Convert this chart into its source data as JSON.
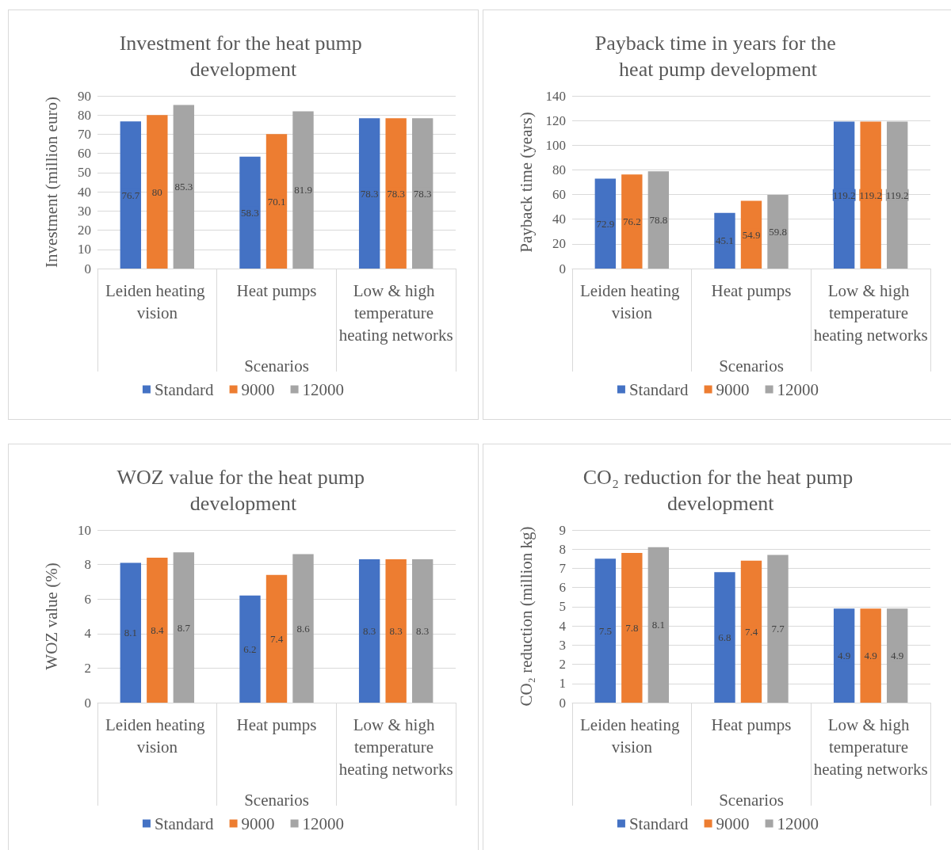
{
  "chart_data": [
    {
      "type": "bar",
      "title": "Investment for the heat pump development",
      "xlabel": "Scenarios",
      "ylabel": "Investment (million euro)",
      "categories": [
        "Leiden heating vision",
        "Heat pumps",
        "Low & high temperature heating networks"
      ],
      "series": [
        {
          "name": "Standard",
          "color": "#4472c4",
          "values": [
            76.7,
            58.3,
            78.3
          ]
        },
        {
          "name": "9000",
          "color": "#ed7d31",
          "values": [
            80,
            70.1,
            78.3
          ]
        },
        {
          "name": "12000",
          "color": "#a5a5a5",
          "values": [
            85.3,
            81.9,
            78.3
          ]
        }
      ],
      "ylim": [
        0,
        90
      ],
      "yticks": [
        0,
        10,
        20,
        30,
        40,
        50,
        60,
        70,
        80,
        90
      ],
      "grid": "y",
      "legend": "bottom",
      "data_labels": true
    },
    {
      "type": "bar",
      "title": "Payback time in years for the heat pump development",
      "xlabel": "Scenarios",
      "ylabel": "Payback time (years)",
      "categories": [
        "Leiden heating vision",
        "Heat pumps",
        "Low & high temperature heating networks"
      ],
      "series": [
        {
          "name": "Standard",
          "color": "#4472c4",
          "values": [
            72.9,
            45.1,
            119.2
          ]
        },
        {
          "name": "9000",
          "color": "#ed7d31",
          "values": [
            76.2,
            54.9,
            119.2
          ]
        },
        {
          "name": "12000",
          "color": "#a5a5a5",
          "values": [
            78.8,
            59.8,
            119.2
          ]
        }
      ],
      "ylim": [
        0,
        140
      ],
      "yticks": [
        0,
        20,
        40,
        60,
        80,
        100,
        120,
        140
      ],
      "grid": "y",
      "legend": "bottom",
      "data_labels": true
    },
    {
      "type": "bar",
      "title": "WOZ value for the heat pump development",
      "xlabel": "Scenarios",
      "ylabel": "WOZ value (%)",
      "categories": [
        "Leiden heating vision",
        "Heat pumps",
        "Low & high temperature heating networks"
      ],
      "series": [
        {
          "name": "Standard",
          "color": "#4472c4",
          "values": [
            8.1,
            6.2,
            8.3
          ]
        },
        {
          "name": "9000",
          "color": "#ed7d31",
          "values": [
            8.4,
            7.4,
            8.3
          ]
        },
        {
          "name": "12000",
          "color": "#a5a5a5",
          "values": [
            8.7,
            8.6,
            8.3
          ]
        }
      ],
      "ylim": [
        0,
        10
      ],
      "yticks": [
        0,
        2,
        4,
        6,
        8,
        10
      ],
      "grid": "y",
      "legend": "bottom",
      "data_labels": true
    },
    {
      "type": "bar",
      "title": "CO₂ reduction for the heat pump development",
      "xlabel": "Scenarios",
      "ylabel": "CO₂ reduction (million kg)",
      "categories": [
        "Leiden heating vision",
        "Heat pumps",
        "Low & high temperature heating networks"
      ],
      "series": [
        {
          "name": "Standard",
          "color": "#4472c4",
          "values": [
            7.5,
            6.8,
            4.9
          ]
        },
        {
          "name": "9000",
          "color": "#ed7d31",
          "values": [
            7.8,
            7.4,
            4.9
          ]
        },
        {
          "name": "12000",
          "color": "#a5a5a5",
          "values": [
            8.1,
            7.7,
            4.9
          ]
        }
      ],
      "ylim": [
        0,
        9
      ],
      "yticks": [
        0,
        1,
        2,
        3,
        4,
        5,
        6,
        7,
        8,
        9
      ],
      "grid": "y",
      "legend": "bottom",
      "data_labels": true
    }
  ]
}
